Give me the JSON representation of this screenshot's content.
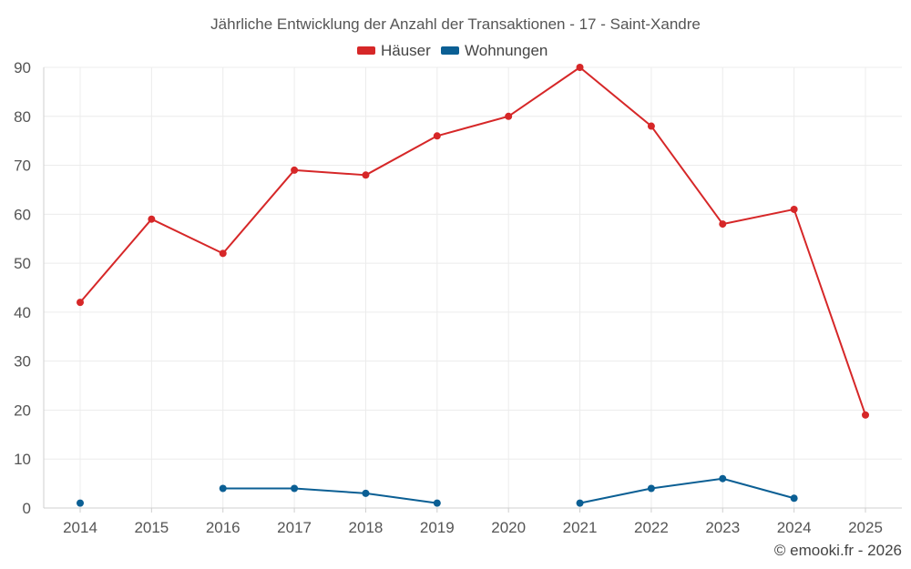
{
  "chart_data": {
    "type": "line",
    "title": "Jährliche Entwicklung der Anzahl der Transaktionen - 17 - Saint-Xandre",
    "categories": [
      "2014",
      "2015",
      "2016",
      "2017",
      "2018",
      "2019",
      "2020",
      "2021",
      "2022",
      "2023",
      "2024",
      "2025"
    ],
    "ylim": [
      0,
      90
    ],
    "yticks": [
      0,
      10,
      20,
      30,
      40,
      50,
      60,
      70,
      80,
      90
    ],
    "grid": true,
    "legend_position": "top-center",
    "series": [
      {
        "name": "Häuser",
        "color": "#d62728",
        "values": [
          42,
          59,
          52,
          69,
          68,
          76,
          80,
          90,
          78,
          58,
          61,
          19
        ]
      },
      {
        "name": "Wohnungen",
        "color": "#0b5f94",
        "values": [
          1,
          null,
          4,
          4,
          3,
          1,
          null,
          1,
          4,
          6,
          2,
          null
        ]
      }
    ]
  },
  "credit": "© emooki.fr - 2026"
}
